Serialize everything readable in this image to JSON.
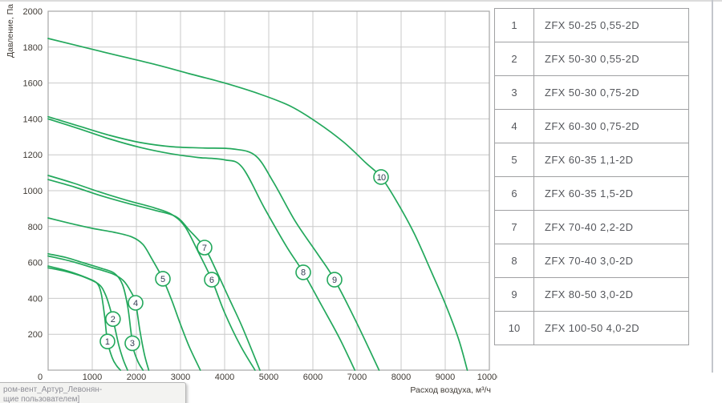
{
  "axes": {
    "y_title": "Давление, Па",
    "x_title": "Расход воздуха, м³/ч"
  },
  "chart_data": {
    "type": "line",
    "title": "",
    "xlabel": "Расход воздуха, м³/ч",
    "ylabel": "Давление, Па",
    "xlim": [
      0,
      10000
    ],
    "ylim": [
      0,
      2000
    ],
    "x_tick_step": 1000,
    "y_tick_step": 200,
    "grid": true,
    "legend_position": "right-table",
    "series": [
      {
        "id": "1",
        "name": "ZFX 50-25 0,55-2D",
        "marker": [
          1345,
          160
        ],
        "points": [
          [
            0,
            580
          ],
          [
            300,
            562
          ],
          [
            600,
            540
          ],
          [
            900,
            512
          ],
          [
            1100,
            486
          ],
          [
            1200,
            430
          ],
          [
            1280,
            300
          ],
          [
            1345,
            160
          ],
          [
            1450,
            70
          ],
          [
            1550,
            25
          ],
          [
            1640,
            0
          ]
        ]
      },
      {
        "id": "2",
        "name": "ZFX 50-30 0,55-2D",
        "marker": [
          1470,
          285
        ],
        "points": [
          [
            0,
            570
          ],
          [
            400,
            550
          ],
          [
            800,
            520
          ],
          [
            1150,
            478
          ],
          [
            1300,
            420
          ],
          [
            1420,
            330
          ],
          [
            1500,
            250
          ],
          [
            1600,
            140
          ],
          [
            1700,
            60
          ],
          [
            1800,
            0
          ]
        ]
      },
      {
        "id": "3",
        "name": "ZFX 50-30 0,75-2D",
        "marker": [
          1909,
          150
        ],
        "points": [
          [
            0,
            648
          ],
          [
            400,
            628
          ],
          [
            800,
            598
          ],
          [
            1200,
            568
          ],
          [
            1500,
            540
          ],
          [
            1680,
            480
          ],
          [
            1800,
            360
          ],
          [
            1870,
            230
          ],
          [
            1930,
            120
          ],
          [
            2040,
            45
          ],
          [
            2150,
            0
          ]
        ]
      },
      {
        "id": "4",
        "name": "ZFX 60-30 0,75-2D",
        "marker": [
          1982,
          375
        ],
        "points": [
          [
            0,
            636
          ],
          [
            500,
            608
          ],
          [
            1000,
            572
          ],
          [
            1450,
            538
          ],
          [
            1700,
            500
          ],
          [
            1870,
            440
          ],
          [
            1982,
            375
          ],
          [
            2080,
            220
          ],
          [
            2180,
            90
          ],
          [
            2280,
            0
          ]
        ]
      },
      {
        "id": "5",
        "name": "ZFX 60-35 1,1-2D",
        "marker": [
          2600,
          509
        ],
        "points": [
          [
            0,
            848
          ],
          [
            500,
            818
          ],
          [
            1000,
            790
          ],
          [
            1500,
            768
          ],
          [
            1900,
            742
          ],
          [
            2150,
            700
          ],
          [
            2350,
            620
          ],
          [
            2600,
            509
          ],
          [
            2800,
            390
          ],
          [
            3000,
            255
          ],
          [
            3200,
            130
          ],
          [
            3450,
            0
          ]
        ]
      },
      {
        "id": "6",
        "name": "ZFX 60-35 1,5-2D",
        "marker": [
          3709,
          504
        ],
        "points": [
          [
            0,
            1085
          ],
          [
            600,
            1040
          ],
          [
            1200,
            990
          ],
          [
            1800,
            945
          ],
          [
            2400,
            905
          ],
          [
            2800,
            868
          ],
          [
            3100,
            800
          ],
          [
            3400,
            660
          ],
          [
            3709,
            504
          ],
          [
            4000,
            320
          ],
          [
            4350,
            140
          ],
          [
            4690,
            0
          ]
        ]
      },
      {
        "id": "7",
        "name": "ZFX 70-40 2,2-2D",
        "marker": [
          3545,
          683
        ],
        "points": [
          [
            0,
            1062
          ],
          [
            600,
            1020
          ],
          [
            1200,
            972
          ],
          [
            1800,
            930
          ],
          [
            2400,
            892
          ],
          [
            2900,
            855
          ],
          [
            3200,
            780
          ],
          [
            3545,
            683
          ],
          [
            3800,
            560
          ],
          [
            4100,
            400
          ],
          [
            4400,
            240
          ],
          [
            4800,
            0
          ]
        ]
      },
      {
        "id": "8",
        "name": "ZFX 70-40 3,0-2D",
        "marker": [
          5782,
          545
        ],
        "points": [
          [
            0,
            1400
          ],
          [
            700,
            1345
          ],
          [
            1400,
            1288
          ],
          [
            2100,
            1240
          ],
          [
            2800,
            1205
          ],
          [
            3400,
            1185
          ],
          [
            4000,
            1172
          ],
          [
            4400,
            1130
          ],
          [
            4909,
            900
          ],
          [
            5400,
            690
          ],
          [
            5782,
            545
          ],
          [
            6200,
            360
          ],
          [
            6600,
            180
          ],
          [
            6950,
            0
          ]
        ]
      },
      {
        "id": "9",
        "name": "ZFX 80-50 3,0-2D",
        "marker": [
          6491,
          504
        ],
        "points": [
          [
            0,
            1412
          ],
          [
            700,
            1360
          ],
          [
            1400,
            1308
          ],
          [
            2100,
            1268
          ],
          [
            2800,
            1245
          ],
          [
            3500,
            1238
          ],
          [
            4200,
            1232
          ],
          [
            4700,
            1195
          ],
          [
            5100,
            1050
          ],
          [
            5600,
            830
          ],
          [
            6100,
            650
          ],
          [
            6491,
            504
          ],
          [
            7000,
            260
          ],
          [
            7500,
            0
          ]
        ]
      },
      {
        "id": "10",
        "name": "ZFX 100-50 4,0-2D",
        "marker": [
          7545,
          1076
        ],
        "points": [
          [
            0,
            1848
          ],
          [
            800,
            1800
          ],
          [
            1600,
            1752
          ],
          [
            2400,
            1705
          ],
          [
            3200,
            1652
          ],
          [
            4000,
            1600
          ],
          [
            4800,
            1538
          ],
          [
            5500,
            1470
          ],
          [
            6100,
            1380
          ],
          [
            6700,
            1270
          ],
          [
            7200,
            1155
          ],
          [
            7545,
            1076
          ],
          [
            7900,
            940
          ],
          [
            8300,
            760
          ],
          [
            8700,
            540
          ],
          [
            9000,
            370
          ],
          [
            9300,
            175
          ],
          [
            9500,
            0
          ]
        ]
      }
    ]
  },
  "legend_table": {
    "rows": [
      {
        "num": "1",
        "model": "ZFX 50-25 0,55-2D"
      },
      {
        "num": "2",
        "model": "ZFX 50-30 0,55-2D"
      },
      {
        "num": "3",
        "model": "ZFX 50-30 0,75-2D"
      },
      {
        "num": "4",
        "model": "ZFX 60-30 0,75-2D"
      },
      {
        "num": "5",
        "model": "ZFX 60-35 1,1-2D"
      },
      {
        "num": "6",
        "model": "ZFX 60-35 1,5-2D"
      },
      {
        "num": "7",
        "model": "ZFX 70-40 2,2-2D"
      },
      {
        "num": "8",
        "model": "ZFX 70-40 3,0-2D"
      },
      {
        "num": "9",
        "model": "ZFX 80-50 3,0-2D"
      },
      {
        "num": "10",
        "model": "ZFX 100-50 4,0-2D"
      }
    ]
  },
  "tooltip": {
    "line1": "ром-вент_Артур_Левонян-",
    "line2": "щие пользователем]"
  },
  "colors": {
    "curve": "#23a85c",
    "grid": "#c9c9c9",
    "frame": "#a7a7a7",
    "tick_text": "#3f3a34",
    "marker_text": "#333b52",
    "table_border": "#a0a1a3",
    "table_text": "#55575c"
  }
}
